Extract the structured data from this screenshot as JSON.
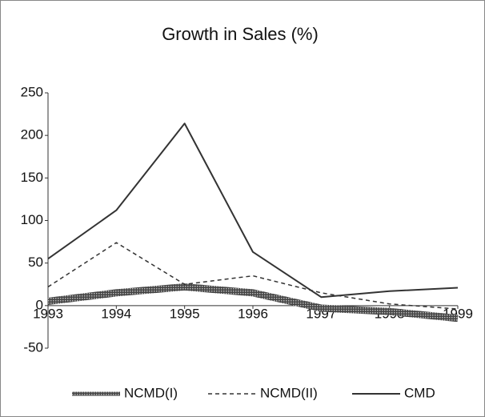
{
  "chart_data": {
    "type": "line",
    "title": "Growth in Sales (%)",
    "x": [
      1993,
      1994,
      1995,
      1996,
      1997,
      1998,
      1999
    ],
    "xlim": [
      1993,
      1999
    ],
    "xticks": [
      1993,
      1994,
      1995,
      1996,
      1997,
      1998,
      1999
    ],
    "ylim": [
      -50,
      250
    ],
    "yticks": [
      -50,
      0,
      50,
      100,
      150,
      200,
      250
    ],
    "grid": false,
    "legend": "bottom",
    "series": [
      {
        "name": "NCMD(I)",
        "color": "#555555",
        "style": "hatched",
        "values": [
          5,
          15,
          22,
          15,
          -3,
          -7,
          -15
        ]
      },
      {
        "name": "NCMD(II)",
        "color": "#333333",
        "style": "dashed",
        "values": [
          22,
          74,
          25,
          35,
          15,
          2,
          -4
        ]
      },
      {
        "name": "CMD",
        "color": "#333333",
        "style": "solid",
        "values": [
          55,
          112,
          214,
          63,
          10,
          17,
          21
        ]
      }
    ]
  }
}
